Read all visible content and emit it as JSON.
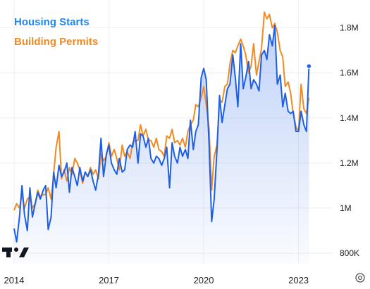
{
  "chart_data": {
    "type": "line",
    "title": "",
    "xlabel": "",
    "ylabel": "",
    "x_ticks": [
      "2014",
      "2017",
      "2020",
      "2023"
    ],
    "y_ticks": [
      "800K",
      "1M",
      "1.2M",
      "1.4M",
      "1.6M",
      "1.8M"
    ],
    "ylim": [
      800,
      1880
    ],
    "xlim": [
      2014.0,
      2023.5
    ],
    "grid": true,
    "legend_position": "top-left",
    "series": [
      {
        "name": "Housing Starts",
        "color": "#1e5fe6",
        "area_fill": true,
        "points": [
          [
            2014.0,
            910
          ],
          [
            2014.08,
            850
          ],
          [
            2014.17,
            960
          ],
          [
            2014.25,
            1100
          ],
          [
            2014.33,
            970
          ],
          [
            2014.42,
            900
          ],
          [
            2014.5,
            1090
          ],
          [
            2014.58,
            960
          ],
          [
            2014.67,
            1020
          ],
          [
            2014.75,
            1070
          ],
          [
            2014.83,
            1040
          ],
          [
            2014.92,
            1080
          ],
          [
            2015.0,
            1100
          ],
          [
            2015.08,
            905
          ],
          [
            2015.17,
            960
          ],
          [
            2015.25,
            1160
          ],
          [
            2015.33,
            1090
          ],
          [
            2015.42,
            1190
          ],
          [
            2015.5,
            1140
          ],
          [
            2015.58,
            1160
          ],
          [
            2015.67,
            1200
          ],
          [
            2015.75,
            1070
          ],
          [
            2015.83,
            1180
          ],
          [
            2015.92,
            1140
          ],
          [
            2016.0,
            1100
          ],
          [
            2016.08,
            1180
          ],
          [
            2016.17,
            1120
          ],
          [
            2016.25,
            1160
          ],
          [
            2016.33,
            1140
          ],
          [
            2016.42,
            1170
          ],
          [
            2016.5,
            1120
          ],
          [
            2016.58,
            1080
          ],
          [
            2016.67,
            1150
          ],
          [
            2016.75,
            1310
          ],
          [
            2016.83,
            1140
          ],
          [
            2016.92,
            1240
          ],
          [
            2017.0,
            1280
          ],
          [
            2017.08,
            1200
          ],
          [
            2017.17,
            1170
          ],
          [
            2017.25,
            1150
          ],
          [
            2017.33,
            1220
          ],
          [
            2017.42,
            1160
          ],
          [
            2017.5,
            1170
          ],
          [
            2017.58,
            1260
          ],
          [
            2017.67,
            1280
          ],
          [
            2017.75,
            1270
          ],
          [
            2017.83,
            1340
          ],
          [
            2017.92,
            1200
          ],
          [
            2018.0,
            1330
          ],
          [
            2018.08,
            1320
          ],
          [
            2018.17,
            1270
          ],
          [
            2018.25,
            1310
          ],
          [
            2018.33,
            1220
          ],
          [
            2018.42,
            1200
          ],
          [
            2018.5,
            1230
          ],
          [
            2018.58,
            1220
          ],
          [
            2018.67,
            1190
          ],
          [
            2018.75,
            1220
          ],
          [
            2018.83,
            1270
          ],
          [
            2018.92,
            1090
          ],
          [
            2019.0,
            1290
          ],
          [
            2019.08,
            1230
          ],
          [
            2019.17,
            1200
          ],
          [
            2019.25,
            1270
          ],
          [
            2019.33,
            1230
          ],
          [
            2019.42,
            1260
          ],
          [
            2019.5,
            1220
          ],
          [
            2019.58,
            1390
          ],
          [
            2019.67,
            1260
          ],
          [
            2019.75,
            1340
          ],
          [
            2019.83,
            1370
          ],
          [
            2019.92,
            1580
          ],
          [
            2020.0,
            1620
          ],
          [
            2020.08,
            1570
          ],
          [
            2020.17,
            1280
          ],
          [
            2020.25,
            940
          ],
          [
            2020.33,
            1040
          ],
          [
            2020.42,
            1260
          ],
          [
            2020.5,
            1500
          ],
          [
            2020.58,
            1380
          ],
          [
            2020.67,
            1460
          ],
          [
            2020.75,
            1530
          ],
          [
            2020.83,
            1550
          ],
          [
            2020.92,
            1680
          ],
          [
            2021.0,
            1580
          ],
          [
            2021.08,
            1450
          ],
          [
            2021.17,
            1730
          ],
          [
            2021.25,
            1530
          ],
          [
            2021.33,
            1580
          ],
          [
            2021.42,
            1650
          ],
          [
            2021.5,
            1530
          ],
          [
            2021.58,
            1570
          ],
          [
            2021.67,
            1550
          ],
          [
            2021.75,
            1520
          ],
          [
            2021.83,
            1680
          ],
          [
            2021.92,
            1700
          ],
          [
            2022.0,
            1660
          ],
          [
            2022.08,
            1770
          ],
          [
            2022.17,
            1720
          ],
          [
            2022.25,
            1810
          ],
          [
            2022.33,
            1550
          ],
          [
            2022.42,
            1590
          ],
          [
            2022.5,
            1450
          ],
          [
            2022.58,
            1510
          ],
          [
            2022.67,
            1430
          ],
          [
            2022.75,
            1420
          ],
          [
            2022.83,
            1430
          ],
          [
            2022.92,
            1340
          ],
          [
            2023.0,
            1340
          ],
          [
            2023.08,
            1430
          ],
          [
            2023.17,
            1370
          ],
          [
            2023.25,
            1340
          ],
          [
            2023.33,
            1630
          ]
        ]
      },
      {
        "name": "Building Permits",
        "color": "#f28a24",
        "area_fill": false,
        "points": [
          [
            2014.0,
            990
          ],
          [
            2014.08,
            1020
          ],
          [
            2014.17,
            1000
          ],
          [
            2014.25,
            1060
          ],
          [
            2014.33,
            1000
          ],
          [
            2014.42,
            1040
          ],
          [
            2014.5,
            1050
          ],
          [
            2014.58,
            1000
          ],
          [
            2014.67,
            1020
          ],
          [
            2014.75,
            1080
          ],
          [
            2014.83,
            1050
          ],
          [
            2014.92,
            1060
          ],
          [
            2015.0,
            1060
          ],
          [
            2015.08,
            1090
          ],
          [
            2015.17,
            1040
          ],
          [
            2015.25,
            1150
          ],
          [
            2015.33,
            1270
          ],
          [
            2015.42,
            1340
          ],
          [
            2015.5,
            1130
          ],
          [
            2015.58,
            1170
          ],
          [
            2015.67,
            1120
          ],
          [
            2015.75,
            1180
          ],
          [
            2015.83,
            1150
          ],
          [
            2015.92,
            1220
          ],
          [
            2016.0,
            1200
          ],
          [
            2016.08,
            1170
          ],
          [
            2016.17,
            1110
          ],
          [
            2016.25,
            1160
          ],
          [
            2016.33,
            1140
          ],
          [
            2016.42,
            1180
          ],
          [
            2016.5,
            1150
          ],
          [
            2016.58,
            1170
          ],
          [
            2016.67,
            1130
          ],
          [
            2016.75,
            1240
          ],
          [
            2016.83,
            1210
          ],
          [
            2016.92,
            1230
          ],
          [
            2017.0,
            1290
          ],
          [
            2017.08,
            1230
          ],
          [
            2017.17,
            1260
          ],
          [
            2017.25,
            1220
          ],
          [
            2017.33,
            1170
          ],
          [
            2017.42,
            1280
          ],
          [
            2017.5,
            1230
          ],
          [
            2017.58,
            1250
          ],
          [
            2017.67,
            1220
          ],
          [
            2017.75,
            1290
          ],
          [
            2017.83,
            1300
          ],
          [
            2017.92,
            1300
          ],
          [
            2018.0,
            1370
          ],
          [
            2018.08,
            1320
          ],
          [
            2018.17,
            1350
          ],
          [
            2018.25,
            1300
          ],
          [
            2018.33,
            1300
          ],
          [
            2018.42,
            1270
          ],
          [
            2018.5,
            1310
          ],
          [
            2018.58,
            1260
          ],
          [
            2018.67,
            1250
          ],
          [
            2018.75,
            1230
          ],
          [
            2018.83,
            1320
          ],
          [
            2018.92,
            1310
          ],
          [
            2019.0,
            1350
          ],
          [
            2019.08,
            1290
          ],
          [
            2019.17,
            1300
          ],
          [
            2019.25,
            1280
          ],
          [
            2019.33,
            1310
          ],
          [
            2019.42,
            1270
          ],
          [
            2019.5,
            1340
          ],
          [
            2019.58,
            1370
          ],
          [
            2019.67,
            1390
          ],
          [
            2019.75,
            1460
          ],
          [
            2019.83,
            1450
          ],
          [
            2019.92,
            1490
          ],
          [
            2020.0,
            1540
          ],
          [
            2020.08,
            1460
          ],
          [
            2020.17,
            1350
          ],
          [
            2020.25,
            1080
          ],
          [
            2020.33,
            1230
          ],
          [
            2020.42,
            1280
          ],
          [
            2020.5,
            1480
          ],
          [
            2020.58,
            1470
          ],
          [
            2020.67,
            1540
          ],
          [
            2020.75,
            1550
          ],
          [
            2020.83,
            1640
          ],
          [
            2020.92,
            1700
          ],
          [
            2021.0,
            1690
          ],
          [
            2021.08,
            1720
          ],
          [
            2021.17,
            1750
          ],
          [
            2021.25,
            1720
          ],
          [
            2021.33,
            1680
          ],
          [
            2021.42,
            1600
          ],
          [
            2021.5,
            1630
          ],
          [
            2021.58,
            1730
          ],
          [
            2021.67,
            1590
          ],
          [
            2021.75,
            1650
          ],
          [
            2021.83,
            1710
          ],
          [
            2021.92,
            1870
          ],
          [
            2022.0,
            1840
          ],
          [
            2022.08,
            1860
          ],
          [
            2022.17,
            1800
          ],
          [
            2022.25,
            1820
          ],
          [
            2022.33,
            1780
          ],
          [
            2022.42,
            1700
          ],
          [
            2022.5,
            1670
          ],
          [
            2022.58,
            1540
          ],
          [
            2022.67,
            1560
          ],
          [
            2022.75,
            1510
          ],
          [
            2022.83,
            1420
          ],
          [
            2022.92,
            1360
          ],
          [
            2023.0,
            1340
          ],
          [
            2023.08,
            1550
          ],
          [
            2023.17,
            1440
          ],
          [
            2023.25,
            1420
          ],
          [
            2023.33,
            1490
          ]
        ]
      }
    ]
  },
  "icons": {
    "brand_logo": "tradingview-logo-icon",
    "settings": "gear-icon"
  }
}
